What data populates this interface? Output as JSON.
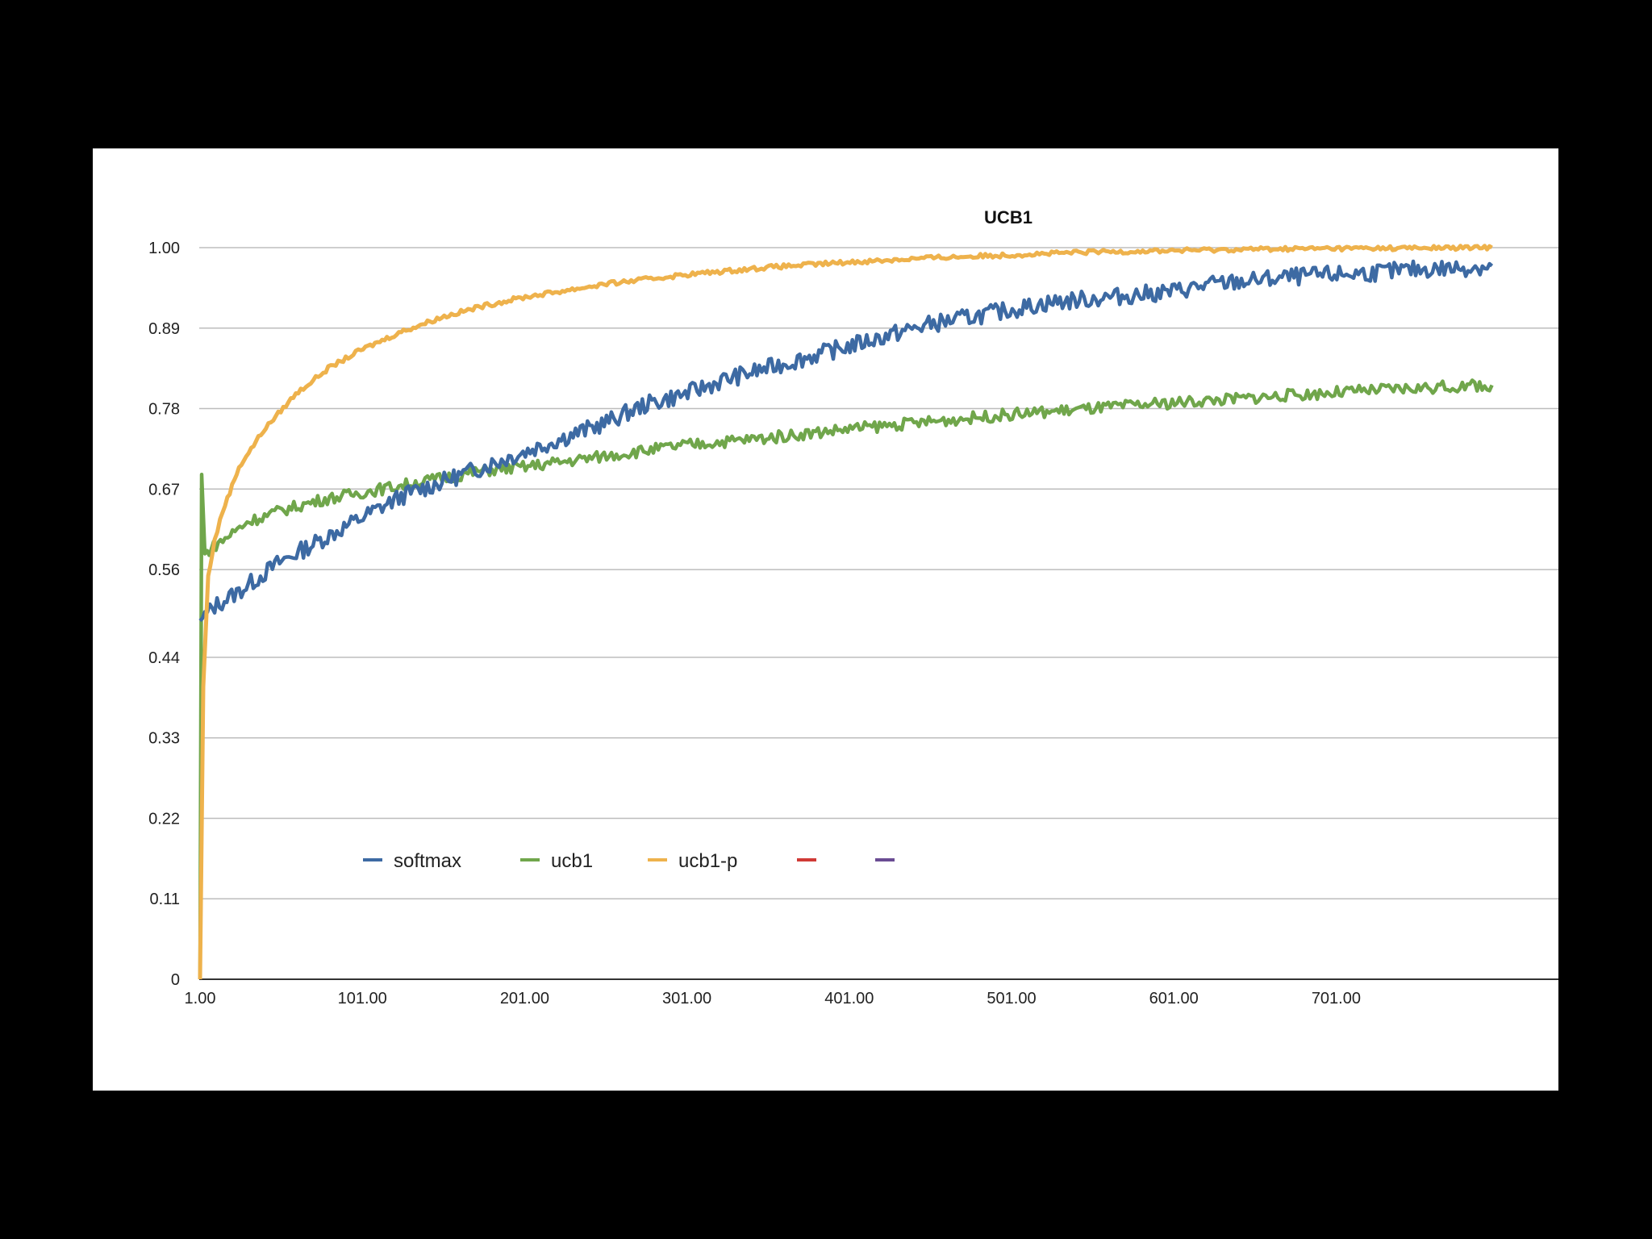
{
  "chart_data": {
    "type": "line",
    "title": "UCB1",
    "xlabel": "",
    "ylabel": "",
    "x_ticks": [
      "1.00",
      "101.00",
      "201.00",
      "301.00",
      "401.00",
      "501.00",
      "601.00",
      "701.00"
    ],
    "y_ticks": [
      "0",
      "0.11",
      "0.22",
      "0.33",
      "0.44",
      "0.56",
      "0.67",
      "0.78",
      "0.89",
      "1.00"
    ],
    "xlim": [
      1,
      850
    ],
    "ylim": [
      0,
      1.0
    ],
    "grid": true,
    "legend_position": "bottom-left",
    "series": [
      {
        "name": "softmax",
        "color": "#3d6aa3",
        "points": [
          [
            1,
            0.49
          ],
          [
            10,
            0.51
          ],
          [
            25,
            0.53
          ],
          [
            50,
            0.57
          ],
          [
            75,
            0.6
          ],
          [
            100,
            0.63
          ],
          [
            125,
            0.66
          ],
          [
            150,
            0.68
          ],
          [
            175,
            0.7
          ],
          [
            200,
            0.72
          ],
          [
            225,
            0.74
          ],
          [
            250,
            0.76
          ],
          [
            275,
            0.785
          ],
          [
            300,
            0.8
          ],
          [
            325,
            0.82
          ],
          [
            350,
            0.835
          ],
          [
            375,
            0.85
          ],
          [
            400,
            0.865
          ],
          [
            425,
            0.88
          ],
          [
            450,
            0.895
          ],
          [
            475,
            0.905
          ],
          [
            500,
            0.915
          ],
          [
            525,
            0.925
          ],
          [
            550,
            0.93
          ],
          [
            575,
            0.935
          ],
          [
            600,
            0.94
          ],
          [
            625,
            0.95
          ],
          [
            650,
            0.955
          ],
          [
            675,
            0.96
          ],
          [
            700,
            0.963
          ],
          [
            725,
            0.966
          ],
          [
            750,
            0.97
          ],
          [
            775,
            0.972
          ],
          [
            797,
            0.975
          ]
        ]
      },
      {
        "name": "ucb1",
        "color": "#70a64b",
        "points": [
          [
            1,
            0.0
          ],
          [
            2,
            0.69
          ],
          [
            4,
            0.58
          ],
          [
            8,
            0.59
          ],
          [
            15,
            0.6
          ],
          [
            30,
            0.625
          ],
          [
            50,
            0.64
          ],
          [
            75,
            0.655
          ],
          [
            100,
            0.665
          ],
          [
            125,
            0.675
          ],
          [
            150,
            0.685
          ],
          [
            175,
            0.695
          ],
          [
            200,
            0.7
          ],
          [
            250,
            0.715
          ],
          [
            300,
            0.73
          ],
          [
            350,
            0.74
          ],
          [
            400,
            0.752
          ],
          [
            450,
            0.762
          ],
          [
            500,
            0.772
          ],
          [
            550,
            0.78
          ],
          [
            600,
            0.788
          ],
          [
            650,
            0.795
          ],
          [
            700,
            0.802
          ],
          [
            750,
            0.808
          ],
          [
            797,
            0.812
          ]
        ]
      },
      {
        "name": "ucb1-p",
        "color": "#eeb24c",
        "points": [
          [
            1,
            0.0
          ],
          [
            3,
            0.4
          ],
          [
            6,
            0.55
          ],
          [
            10,
            0.6
          ],
          [
            15,
            0.64
          ],
          [
            25,
            0.7
          ],
          [
            40,
            0.75
          ],
          [
            60,
            0.8
          ],
          [
            80,
            0.835
          ],
          [
            100,
            0.86
          ],
          [
            125,
            0.885
          ],
          [
            150,
            0.905
          ],
          [
            175,
            0.92
          ],
          [
            200,
            0.932
          ],
          [
            250,
            0.95
          ],
          [
            300,
            0.963
          ],
          [
            350,
            0.973
          ],
          [
            400,
            0.98
          ],
          [
            450,
            0.986
          ],
          [
            500,
            0.99
          ],
          [
            550,
            0.994
          ],
          [
            600,
            0.996
          ],
          [
            650,
            0.998
          ],
          [
            700,
            0.999
          ],
          [
            797,
            1.0
          ]
        ]
      },
      {
        "name": "",
        "color": "#d03a36",
        "points": []
      },
      {
        "name": "",
        "color": "#6a4c93",
        "points": []
      }
    ]
  }
}
